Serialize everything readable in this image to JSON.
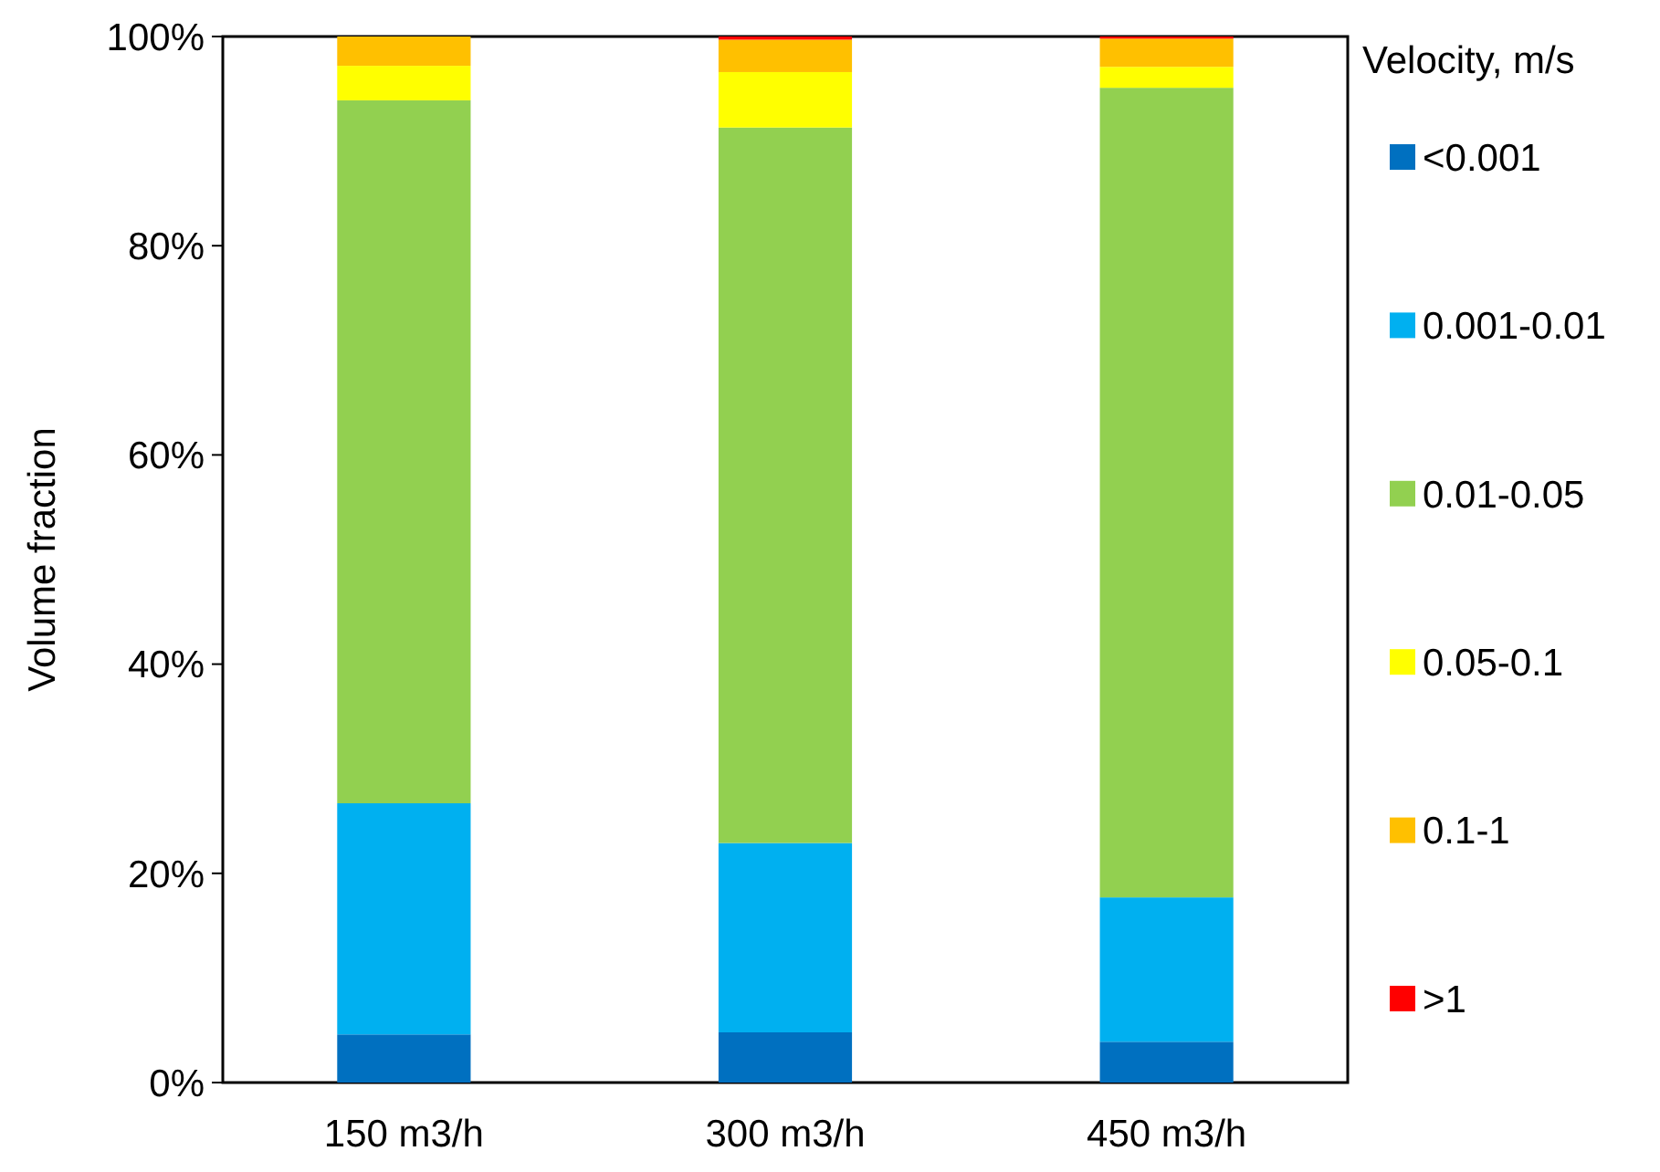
{
  "chart_data": {
    "type": "bar",
    "stacked": true,
    "ylabel": "Volume fraction",
    "legend_title": "Velocity, m/s",
    "legend": "right",
    "grid": false,
    "categories": [
      "150 m3/h",
      "300 m3/h",
      "450 m3/h"
    ],
    "ylim": [
      0,
      100
    ],
    "yticks": [
      {
        "value": 0,
        "label": "0%"
      },
      {
        "value": 20,
        "label": "20%"
      },
      {
        "value": 40,
        "label": "40%"
      },
      {
        "value": 60,
        "label": "60%"
      },
      {
        "value": 80,
        "label": "80%"
      },
      {
        "value": 100,
        "label": "100%"
      }
    ],
    "series": [
      {
        "name": "<0.001",
        "color": "#0070c0",
        "values": [
          4.6,
          4.8,
          3.9
        ]
      },
      {
        "name": "0.001-0.01",
        "color": "#00b0f0",
        "values": [
          22.1,
          18.1,
          13.8
        ]
      },
      {
        "name": "0.01-0.05",
        "color": "#92d050",
        "values": [
          67.2,
          68.4,
          77.4
        ]
      },
      {
        "name": "0.05-0.1",
        "color": "#ffff00",
        "values": [
          3.3,
          5.3,
          2.0
        ]
      },
      {
        "name": "0.1-1",
        "color": "#ffc000",
        "values": [
          2.8,
          3.1,
          2.7
        ]
      },
      {
        "name": ">1",
        "color": "#ff0000",
        "values": [
          0,
          0.3,
          0.2
        ]
      }
    ]
  }
}
